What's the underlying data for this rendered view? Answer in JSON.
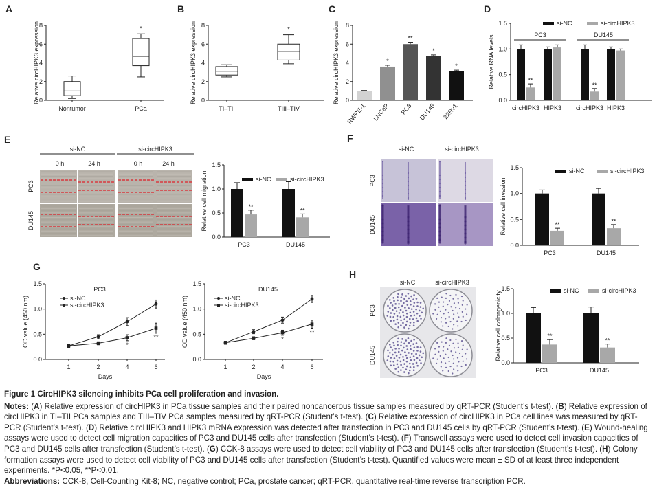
{
  "figure": {
    "panels": {
      "A": {
        "label": "A",
        "ylabel": "Relative circHIPK3 expression",
        "yticks": [
          "0",
          "2",
          "4",
          "6",
          "8"
        ],
        "categories": [
          "Nontumor",
          "PCa"
        ],
        "sig": [
          "",
          "*"
        ]
      },
      "B": {
        "label": "B",
        "ylabel": "Relative circHIPK3 expression",
        "yticks": [
          "0",
          "2",
          "4",
          "6",
          "8"
        ],
        "categories": [
          "TI–TII",
          "TIII–TIV"
        ],
        "sig": [
          "",
          "*"
        ]
      },
      "C": {
        "label": "C",
        "ylabel": "Relative circHIPK3 expression",
        "yticks": [
          "0",
          "2",
          "4",
          "6",
          "8"
        ],
        "categories": [
          "RWPE-1",
          "LNCaP",
          "PC3",
          "DU145",
          "22Rv1"
        ],
        "sig": [
          "",
          "*",
          "**",
          "*",
          "*"
        ]
      },
      "D": {
        "label": "D",
        "ylabel": "Relative RNA levels",
        "yticks": [
          "0.0",
          "0.5",
          "1.0",
          "1.5"
        ],
        "legend": [
          "si-NC",
          "si-circHIPK3"
        ],
        "groups": [
          "PC3",
          "DU145"
        ],
        "categories": [
          "circHIPK3",
          "HIPK3",
          "circHIPK3",
          "HIPK3"
        ],
        "sig": [
          "**",
          "**"
        ]
      },
      "E": {
        "label": "E",
        "cols": [
          "si-NC",
          "si-circHIPK3"
        ],
        "times": [
          "0 h",
          "24 h",
          "0 h",
          "24 h"
        ],
        "rows": [
          "PC3",
          "DU145"
        ],
        "ylabel": "Relative cell migration",
        "yticks": [
          "0.0",
          "0.5",
          "1.0",
          "1.5"
        ],
        "legend": [
          "si-NC",
          "si-circHIPK3"
        ],
        "categories": [
          "PC3",
          "DU145"
        ],
        "sig": [
          "**",
          "**"
        ]
      },
      "F": {
        "label": "F",
        "cols": [
          "si-NC",
          "si-circHIPK3"
        ],
        "rows": [
          "PC3",
          "DU145"
        ],
        "ylabel": "Relative cell invasion",
        "yticks": [
          "0.0",
          "0.5",
          "1.0",
          "1.5"
        ],
        "legend": [
          "si-NC",
          "si-circHIPK3"
        ],
        "categories": [
          "PC3",
          "DU145"
        ],
        "sig": [
          "**",
          "**"
        ]
      },
      "G": {
        "label": "G",
        "charts": [
          {
            "title": "PC3",
            "ylabel": "OD value (450 nm)",
            "xlabel": "Days",
            "yticks": [
              "0.0",
              "0.5",
              "1.0",
              "1.5"
            ],
            "xticks": [
              "1",
              "2",
              "4",
              "6"
            ],
            "legend": [
              "si-NC",
              "si-circHIPK3"
            ],
            "sig": [
              "*",
              "**"
            ]
          },
          {
            "title": "DU145",
            "ylabel": "OD value (450 nm)",
            "xlabel": "Days",
            "yticks": [
              "0.0",
              "0.5",
              "1.0",
              "1.5"
            ],
            "xticks": [
              "1",
              "2",
              "4",
              "6"
            ],
            "legend": [
              "si-NC",
              "si-circHIPK3"
            ],
            "sig": [
              "*",
              "**"
            ]
          }
        ]
      },
      "H": {
        "label": "H",
        "cols": [
          "si-NC",
          "si-circHIPK3"
        ],
        "rows": [
          "PC3",
          "DU145"
        ],
        "ylabel": "Relative cell colongenicity",
        "yticks": [
          "0.0",
          "0.5",
          "1.0",
          "1.5"
        ],
        "legend": [
          "si-NC",
          "si-circHIPK3"
        ],
        "categories": [
          "PC3",
          "DU145"
        ],
        "sig": [
          "**",
          "**"
        ]
      }
    },
    "colors": {
      "dark": "#111111",
      "gray": "#a8a8a8",
      "red": "#e0202a",
      "invasion": "#5b3f91"
    }
  },
  "chart_data": [
    {
      "type": "box",
      "panel": "A",
      "categories": [
        "Nontumor",
        "PCa"
      ],
      "boxes": [
        {
          "min": 0.2,
          "q1": 0.5,
          "median": 1.0,
          "q3": 2.0,
          "max": 2.6
        },
        {
          "min": 2.5,
          "q1": 3.7,
          "median": 4.7,
          "q3": 6.6,
          "max": 7.1
        }
      ],
      "ylim": [
        0,
        8
      ]
    },
    {
      "type": "box",
      "panel": "B",
      "categories": [
        "TI–TII",
        "TIII–TIV"
      ],
      "boxes": [
        {
          "min": 2.5,
          "q1": 2.7,
          "median": 3.1,
          "q3": 3.6,
          "max": 3.8
        },
        {
          "min": 3.9,
          "q1": 4.3,
          "median": 5.2,
          "q3": 6.0,
          "max": 7.0
        }
      ],
      "ylim": [
        0,
        8
      ]
    },
    {
      "type": "bar",
      "panel": "C",
      "categories": [
        "RWPE-1",
        "LNCaP",
        "PC3",
        "DU145",
        "22Rv1"
      ],
      "values": [
        1.0,
        3.6,
        6.0,
        4.7,
        3.1
      ],
      "errors": [
        0.05,
        0.15,
        0.2,
        0.15,
        0.12
      ],
      "colors": [
        "#d2d2d2",
        "#909090",
        "#555555",
        "#333333",
        "#111111"
      ],
      "ylim": [
        0,
        8
      ]
    },
    {
      "type": "bar",
      "panel": "D",
      "categories": [
        "circHIPK3",
        "HIPK3",
        "circHIPK3",
        "HIPK3"
      ],
      "series": [
        {
          "name": "si-NC",
          "values": [
            1.0,
            1.0,
            1.0,
            1.0
          ],
          "errors": [
            0.08,
            0.04,
            0.08,
            0.04
          ]
        },
        {
          "name": "si-circHIPK3",
          "values": [
            0.25,
            1.03,
            0.17,
            0.97
          ],
          "errors": [
            0.07,
            0.05,
            0.06,
            0.03
          ]
        }
      ],
      "ylim": [
        0,
        1.5
      ]
    },
    {
      "type": "bar",
      "panel": "E",
      "categories": [
        "PC3",
        "DU145"
      ],
      "series": [
        {
          "name": "si-NC",
          "values": [
            1.0,
            1.0
          ],
          "errors": [
            0.13,
            0.15
          ]
        },
        {
          "name": "si-circHIPK3",
          "values": [
            0.47,
            0.41
          ],
          "errors": [
            0.09,
            0.07
          ]
        }
      ],
      "ylim": [
        0,
        1.5
      ]
    },
    {
      "type": "bar",
      "panel": "F",
      "categories": [
        "PC3",
        "DU145"
      ],
      "series": [
        {
          "name": "si-NC",
          "values": [
            1.0,
            1.0
          ],
          "errors": [
            0.07,
            0.1
          ]
        },
        {
          "name": "si-circHIPK3",
          "values": [
            0.28,
            0.33
          ],
          "errors": [
            0.05,
            0.07
          ]
        }
      ],
      "ylim": [
        0,
        1.5
      ]
    },
    {
      "type": "line",
      "panel": "G",
      "title": "PC3",
      "x": [
        1,
        2,
        4,
        6
      ],
      "series": [
        {
          "name": "si-NC",
          "values": [
            0.27,
            0.45,
            0.75,
            1.1
          ],
          "errors": [
            0.03,
            0.04,
            0.08,
            0.08
          ]
        },
        {
          "name": "si-circHIPK3",
          "values": [
            0.27,
            0.32,
            0.43,
            0.62
          ],
          "errors": [
            0.03,
            0.03,
            0.06,
            0.1
          ]
        }
      ],
      "ylim": [
        0,
        1.5
      ]
    },
    {
      "type": "line",
      "panel": "G",
      "title": "DU145",
      "x": [
        1,
        2,
        4,
        6
      ],
      "series": [
        {
          "name": "si-NC",
          "values": [
            0.33,
            0.55,
            0.78,
            1.2
          ],
          "errors": [
            0.03,
            0.04,
            0.06,
            0.07
          ]
        },
        {
          "name": "si-circHIPK3",
          "values": [
            0.33,
            0.42,
            0.53,
            0.7
          ],
          "errors": [
            0.03,
            0.03,
            0.05,
            0.08
          ]
        }
      ],
      "ylim": [
        0,
        1.5
      ]
    },
    {
      "type": "bar",
      "panel": "H",
      "categories": [
        "PC3",
        "DU145"
      ],
      "series": [
        {
          "name": "si-NC",
          "values": [
            1.0,
            1.0
          ],
          "errors": [
            0.12,
            0.13
          ]
        },
        {
          "name": "si-circHIPK3",
          "values": [
            0.37,
            0.31
          ],
          "errors": [
            0.1,
            0.07
          ]
        }
      ],
      "ylim": [
        0,
        1.5
      ]
    }
  ],
  "caption": {
    "title": "Figure 1 CircHIPK3 silencing inhibits PCa cell proliferation and invasion.",
    "notes_label": "Notes:",
    "notes": [
      {
        "t": " (",
        "b": false
      },
      {
        "t": "A",
        "b": true
      },
      {
        "t": ") Relative expression of circHIPK3 in PCa tissue samples and their paired noncancerous tissue samples measured by qRT-PCR (Student’s t-test). (",
        "b": false
      },
      {
        "t": "B",
        "b": true
      },
      {
        "t": ") Relative expression of circHIPK3 in TI–TII PCa samples and TIII–TIV PCa samples measured by qRT-PCR (Student’s t-test). (",
        "b": false
      },
      {
        "t": "C",
        "b": true
      },
      {
        "t": ") Relative expression of circHIPK3 in PCa cell lines was measured by qRT-PCR (Student’s t-test). (",
        "b": false
      },
      {
        "t": "D",
        "b": true
      },
      {
        "t": ") Relative circHIPK3 and HIPK3 mRNA expression was detected after transfection in PC3 and DU145 cells by qRT-PCR (Student’s t-test). (",
        "b": false
      },
      {
        "t": "E",
        "b": true
      },
      {
        "t": ") Wound-healing assays were used to detect cell migration capacities of PC3 and DU145 cells after transfection (Student’s t-test). (",
        "b": false
      },
      {
        "t": "F",
        "b": true
      },
      {
        "t": ") Transwell assays were used to detect cell invasion capacities of PC3 and DU145 cells after transfection (Student’s t-test). (",
        "b": false
      },
      {
        "t": "G",
        "b": true
      },
      {
        "t": ") CCK-8 assays were used to detect cell viability of PC3 and DU145 cells after transfection (Student’s t-test). (",
        "b": false
      },
      {
        "t": "H",
        "b": true
      },
      {
        "t": ") Colony formation assays were used to detect cell viability of PC3 and DU145 cells after transfection (Student’s t-test). Quantified values were mean ± SD of at least three independent experiments. *P<0.05, **P<0.01.",
        "b": false
      }
    ],
    "abbr_label": "Abbreviations:",
    "abbr": " CCK-8, Cell-Counting Kit-8; NC, negative control; PCa, prostate cancer; qRT-PCR, quantitative real-time reverse transcription PCR."
  }
}
